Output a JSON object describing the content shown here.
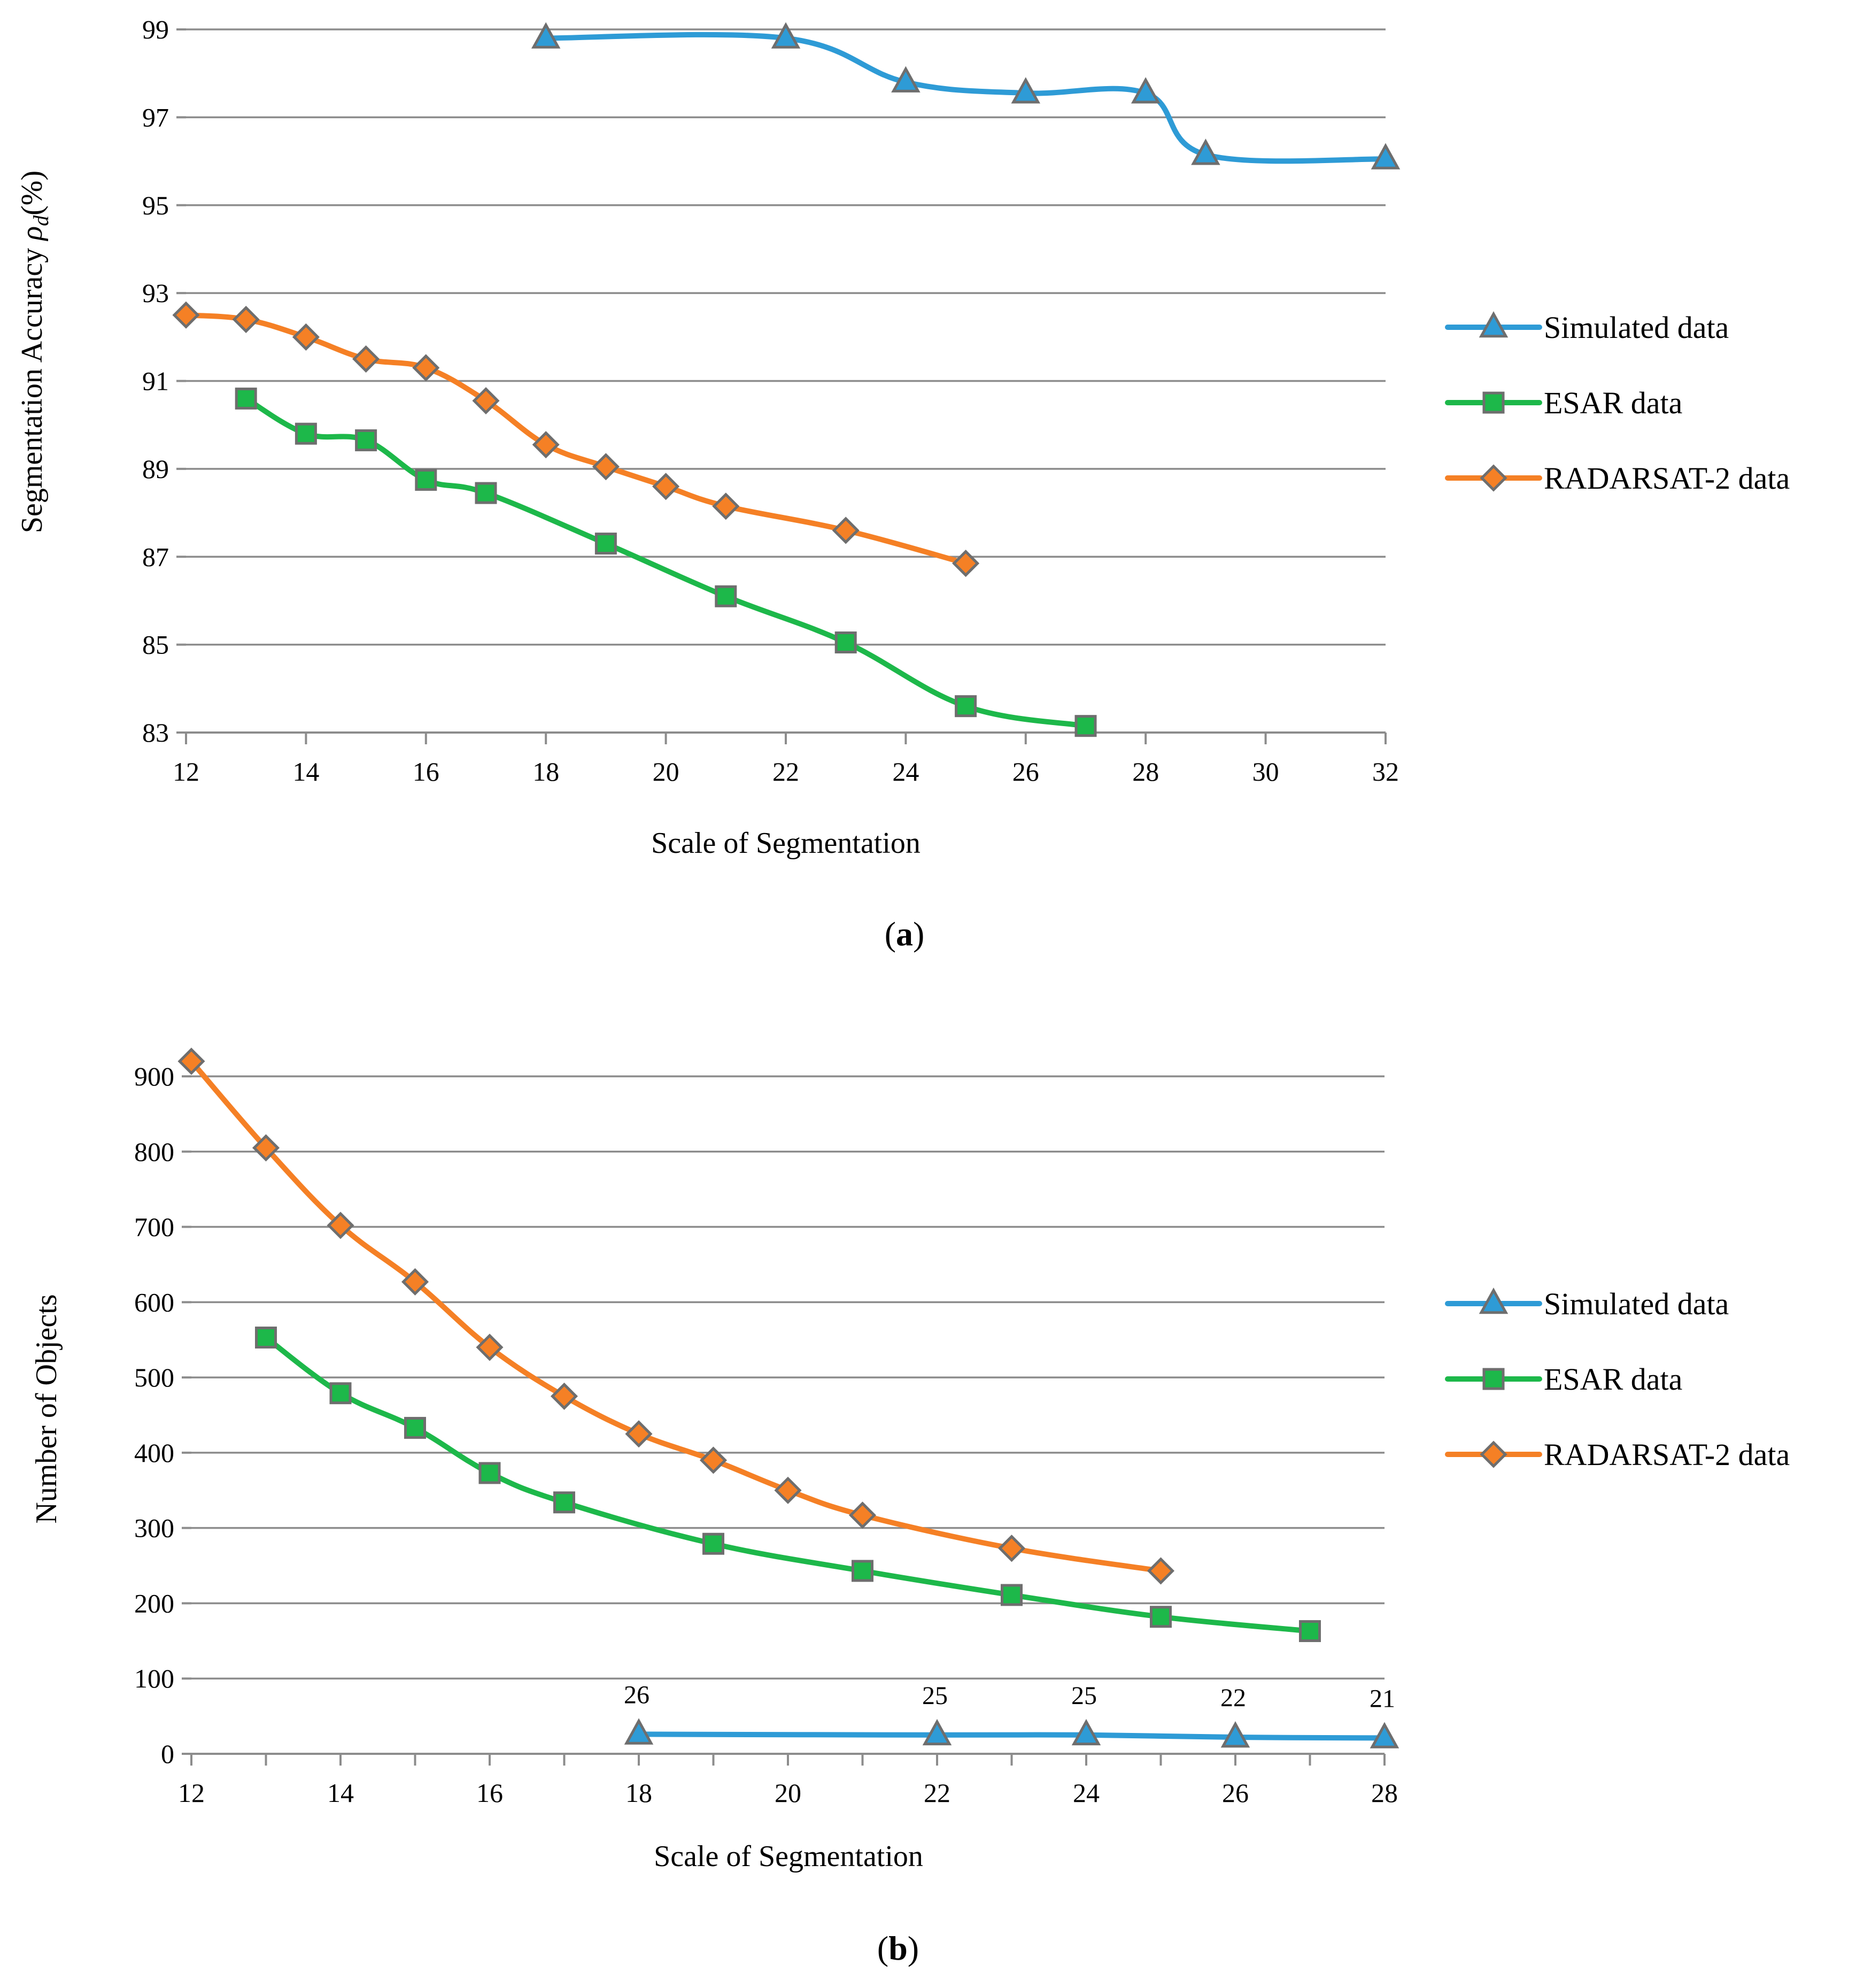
{
  "chart_data": [
    {
      "type": "line",
      "caption_letter": "a",
      "xlabel": "Scale of Segmentation",
      "ylabel_main": "Segmentation Accuracy ",
      "ylabel_symbol": "ρ",
      "ylabel_subscript": "d",
      "ylabel_tail": "(%)",
      "xlim": [
        12,
        32
      ],
      "ylim": [
        83,
        99
      ],
      "xticks": [
        12,
        14,
        16,
        18,
        20,
        22,
        24,
        26,
        28,
        30,
        32
      ],
      "yticks": [
        83,
        85,
        87,
        89,
        91,
        93,
        95,
        97,
        99
      ],
      "grid": "horizontal",
      "legend_position": "right",
      "series": [
        {
          "name": "Simulated data",
          "color": "#2e9bd6",
          "marker": "triangle",
          "x": [
            18,
            22,
            24,
            26,
            28,
            29,
            32
          ],
          "y": [
            98.8,
            98.8,
            97.8,
            97.55,
            97.55,
            96.15,
            96.05
          ]
        },
        {
          "name": "ESAR data",
          "color": "#1db84a",
          "marker": "square",
          "x": [
            13,
            14,
            15,
            16,
            17,
            19,
            21,
            23,
            25,
            27
          ],
          "y": [
            90.6,
            89.8,
            89.65,
            88.75,
            88.45,
            87.3,
            86.1,
            85.05,
            83.6,
            83.15
          ]
        },
        {
          "name": "RADARSAT-2 data",
          "color": "#f58025",
          "marker": "diamond",
          "x": [
            12,
            13,
            14,
            15,
            16,
            17,
            18,
            19,
            20,
            21,
            23,
            25
          ],
          "y": [
            92.5,
            92.4,
            92.0,
            91.5,
            91.3,
            90.55,
            89.55,
            89.05,
            88.6,
            88.15,
            87.6,
            86.85
          ]
        }
      ]
    },
    {
      "type": "line",
      "caption_letter": "b",
      "xlabel": "Scale of Segmentation",
      "ylabel_main": "Number of Objects",
      "xlim": [
        12,
        28
      ],
      "ylim": [
        0,
        900
      ],
      "xticks": [
        12,
        14,
        16,
        18,
        20,
        22,
        24,
        26,
        28
      ],
      "yticks": [
        0,
        100,
        200,
        300,
        400,
        500,
        600,
        700,
        800,
        900
      ],
      "grid": "horizontal",
      "legend_position": "right",
      "series": [
        {
          "name": "Simulated data",
          "color": "#2e9bd6",
          "marker": "triangle",
          "x": [
            18,
            22,
            24,
            26,
            28
          ],
          "y": [
            26,
            25,
            25,
            22,
            21
          ],
          "labels": [
            "26",
            "25",
            "25",
            "22",
            "21"
          ]
        },
        {
          "name": "ESAR data",
          "color": "#1db84a",
          "marker": "square",
          "x": [
            13,
            14,
            15,
            16,
            17,
            19,
            21,
            23,
            25,
            27
          ],
          "y": [
            553,
            479,
            433,
            373,
            334,
            279,
            243,
            211,
            182,
            163
          ]
        },
        {
          "name": "RADARSAT-2 data",
          "color": "#f58025",
          "marker": "diamond",
          "x": [
            12,
            13,
            14,
            15,
            16,
            17,
            18,
            19,
            20,
            21,
            23,
            25
          ],
          "y": [
            920,
            805,
            702,
            627,
            540,
            475,
            425,
            390,
            350,
            317,
            273,
            243
          ]
        }
      ]
    }
  ]
}
